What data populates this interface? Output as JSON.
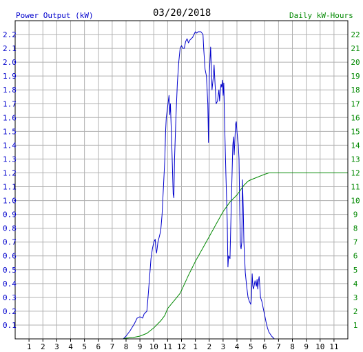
{
  "header": {
    "left_label": "Power Output (kW)",
    "date": "03/20/2018",
    "right_label": "Daily kW-Hours"
  },
  "colors": {
    "power": "#0000cc",
    "energy": "#008800",
    "grid": "#b0b0b0",
    "background": "#ffffff"
  },
  "chart_data": {
    "type": "line",
    "title": "03/20/2018",
    "xlabel": "",
    "grid": true,
    "x_range": [
      0,
      24
    ],
    "x_tick_labels": [
      "1",
      "2",
      "3",
      "4",
      "5",
      "6",
      "7",
      "8",
      "9",
      "10",
      "11",
      "12",
      "1",
      "2",
      "3",
      "4",
      "5",
      "6",
      "7",
      "8",
      "9",
      "10",
      "11"
    ],
    "y_left": {
      "label": "Power Output (kW)",
      "range": [
        0,
        2.3
      ],
      "tick_labels": [
        "0.1",
        "0.2",
        "0.3",
        "0.4",
        "0.5",
        "0.6",
        "0.7",
        "0.8",
        "0.9",
        "1.0",
        "1.1",
        "1.2",
        "1.3",
        "1.4",
        "1.5",
        "1.6",
        "1.7",
        "1.8",
        "1.9",
        "2.0",
        "2.1",
        "2.2"
      ]
    },
    "y_right": {
      "label": "Daily kW-Hours",
      "range": [
        0,
        23
      ],
      "tick_labels": [
        "1",
        "2",
        "3",
        "4",
        "5",
        "6",
        "7",
        "8",
        "9",
        "10",
        "11",
        "12",
        "13",
        "14",
        "15",
        "16",
        "17",
        "18",
        "19",
        "20",
        "21",
        "22"
      ]
    },
    "series": [
      {
        "name": "Power Output (kW)",
        "axis": "left",
        "points": [
          [
            0,
            0
          ],
          [
            7.8,
            0
          ],
          [
            8.0,
            0.02
          ],
          [
            8.3,
            0.06
          ],
          [
            8.6,
            0.11
          ],
          [
            8.8,
            0.15
          ],
          [
            9.0,
            0.16
          ],
          [
            9.2,
            0.15
          ],
          [
            9.3,
            0.18
          ],
          [
            9.5,
            0.2
          ],
          [
            9.6,
            0.32
          ],
          [
            9.7,
            0.45
          ],
          [
            9.8,
            0.58
          ],
          [
            9.9,
            0.65
          ],
          [
            10.0,
            0.7
          ],
          [
            10.1,
            0.72
          ],
          [
            10.15,
            0.65
          ],
          [
            10.2,
            0.62
          ],
          [
            10.3,
            0.7
          ],
          [
            10.4,
            0.74
          ],
          [
            10.5,
            0.78
          ],
          [
            10.6,
            0.9
          ],
          [
            10.7,
            1.1
          ],
          [
            10.8,
            1.3
          ],
          [
            10.85,
            1.5
          ],
          [
            10.9,
            1.6
          ],
          [
            11.0,
            1.68
          ],
          [
            11.1,
            1.76
          ],
          [
            11.15,
            1.62
          ],
          [
            11.2,
            1.7
          ],
          [
            11.3,
            1.4
          ],
          [
            11.4,
            1.05
          ],
          [
            11.45,
            1.02
          ],
          [
            11.5,
            1.3
          ],
          [
            11.6,
            1.6
          ],
          [
            11.7,
            1.85
          ],
          [
            11.8,
            2.0
          ],
          [
            11.9,
            2.1
          ],
          [
            12.0,
            2.12
          ],
          [
            12.1,
            2.1
          ],
          [
            12.2,
            2.1
          ],
          [
            12.3,
            2.15
          ],
          [
            12.4,
            2.17
          ],
          [
            12.5,
            2.14
          ],
          [
            12.6,
            2.16
          ],
          [
            12.7,
            2.17
          ],
          [
            12.8,
            2.18
          ],
          [
            12.9,
            2.2
          ],
          [
            13.0,
            2.22
          ],
          [
            13.1,
            2.21
          ],
          [
            13.2,
            2.22
          ],
          [
            13.4,
            2.22
          ],
          [
            13.55,
            2.2
          ],
          [
            13.6,
            2.1
          ],
          [
            13.7,
            1.95
          ],
          [
            13.8,
            1.9
          ],
          [
            13.9,
            1.7
          ],
          [
            13.95,
            1.42
          ],
          [
            14.0,
            1.9
          ],
          [
            14.1,
            2.11
          ],
          [
            14.2,
            1.8
          ],
          [
            14.3,
            1.9
          ],
          [
            14.35,
            1.98
          ],
          [
            14.4,
            1.88
          ],
          [
            14.5,
            1.7
          ],
          [
            14.6,
            1.72
          ],
          [
            14.7,
            1.8
          ],
          [
            14.75,
            1.72
          ],
          [
            14.8,
            1.8
          ],
          [
            14.85,
            1.84
          ],
          [
            14.9,
            1.82
          ],
          [
            14.95,
            1.87
          ],
          [
            15.0,
            1.76
          ],
          [
            15.05,
            1.85
          ],
          [
            15.1,
            1.6
          ],
          [
            15.2,
            1.2
          ],
          [
            15.3,
            0.85
          ],
          [
            15.35,
            0.52
          ],
          [
            15.4,
            0.6
          ],
          [
            15.5,
            0.58
          ],
          [
            15.6,
            1.0
          ],
          [
            15.7,
            1.4
          ],
          [
            15.75,
            1.46
          ],
          [
            15.8,
            1.33
          ],
          [
            15.9,
            1.55
          ],
          [
            15.95,
            1.57
          ],
          [
            16.0,
            1.5
          ],
          [
            16.1,
            1.4
          ],
          [
            16.15,
            1.3
          ],
          [
            16.2,
            0.95
          ],
          [
            16.25,
            0.68
          ],
          [
            16.3,
            0.65
          ],
          [
            16.35,
            0.7
          ],
          [
            16.4,
            1.15
          ],
          [
            16.45,
            0.95
          ],
          [
            16.5,
            0.7
          ],
          [
            16.6,
            0.48
          ],
          [
            16.7,
            0.38
          ],
          [
            16.8,
            0.3
          ],
          [
            16.9,
            0.27
          ],
          [
            17.0,
            0.25
          ],
          [
            17.05,
            0.3
          ],
          [
            17.1,
            0.47
          ],
          [
            17.15,
            0.38
          ],
          [
            17.2,
            0.36
          ],
          [
            17.3,
            0.42
          ],
          [
            17.35,
            0.4
          ],
          [
            17.4,
            0.38
          ],
          [
            17.45,
            0.43
          ],
          [
            17.5,
            0.36
          ],
          [
            17.55,
            0.42
          ],
          [
            17.6,
            0.45
          ],
          [
            17.65,
            0.38
          ],
          [
            17.7,
            0.3
          ],
          [
            17.8,
            0.27
          ],
          [
            17.9,
            0.22
          ],
          [
            18.0,
            0.17
          ],
          [
            18.1,
            0.12
          ],
          [
            18.2,
            0.08
          ],
          [
            18.3,
            0.05
          ],
          [
            18.5,
            0.02
          ],
          [
            18.7,
            0
          ],
          [
            24,
            0
          ]
        ]
      },
      {
        "name": "Daily kW-Hours",
        "axis": "right",
        "points": [
          [
            0,
            0
          ],
          [
            7.8,
            0
          ],
          [
            8.0,
            0.05
          ],
          [
            8.5,
            0.1
          ],
          [
            9.0,
            0.2
          ],
          [
            9.5,
            0.4
          ],
          [
            10.0,
            0.8
          ],
          [
            10.5,
            1.3
          ],
          [
            10.8,
            1.7
          ],
          [
            11.0,
            2.2
          ],
          [
            11.5,
            2.8
          ],
          [
            11.9,
            3.3
          ],
          [
            12.0,
            3.5
          ],
          [
            12.5,
            4.6
          ],
          [
            13.0,
            5.6
          ],
          [
            13.5,
            6.5
          ],
          [
            14.0,
            7.4
          ],
          [
            14.5,
            8.3
          ],
          [
            15.0,
            9.2
          ],
          [
            15.5,
            9.9
          ],
          [
            16.0,
            10.4
          ],
          [
            16.5,
            11.1
          ],
          [
            16.8,
            11.4
          ],
          [
            17.0,
            11.5
          ],
          [
            17.5,
            11.7
          ],
          [
            18.0,
            11.9
          ],
          [
            18.3,
            12.0
          ],
          [
            19.0,
            12.0
          ],
          [
            24,
            12.0
          ]
        ]
      }
    ]
  }
}
